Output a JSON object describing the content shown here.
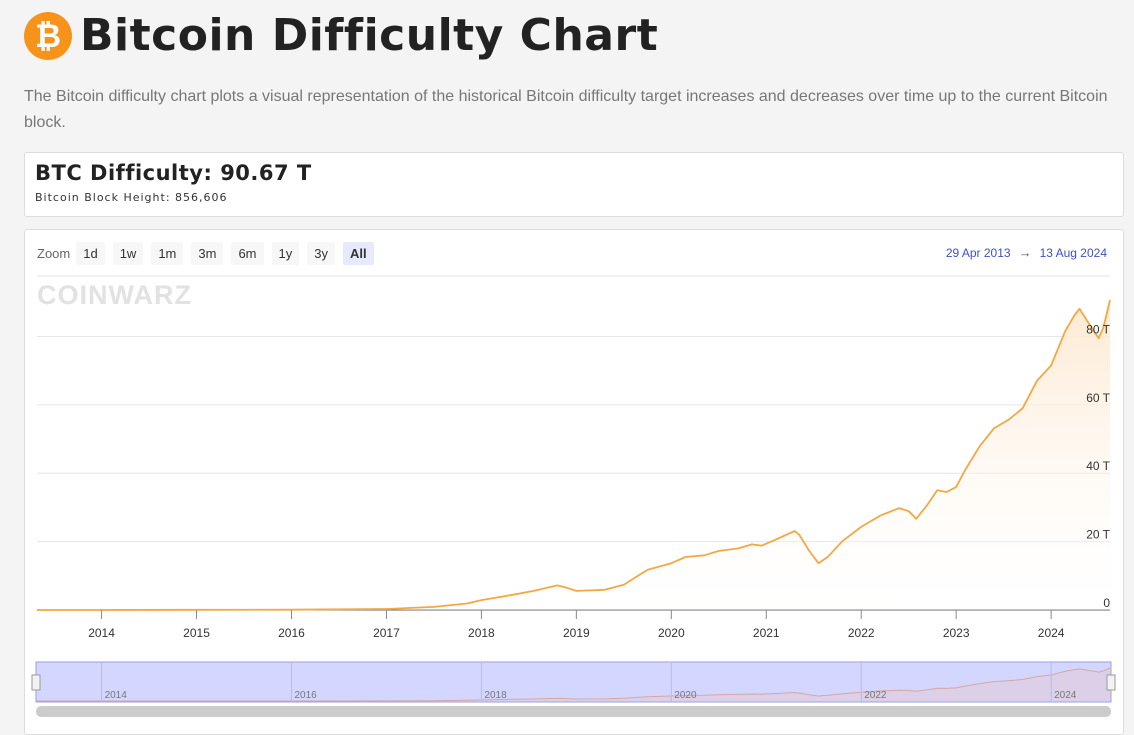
{
  "header": {
    "logo_glyph": "₿",
    "title": "Bitcoin Difficulty Chart"
  },
  "description": "The Bitcoin difficulty chart plots a visual representation of the historical Bitcoin difficulty target increases and decreases over time up to the current Bitcoin block.",
  "stats": {
    "difficulty_label": "BTC Difficulty: 90.67 T",
    "block_height_label": "Bitcoin Block Height: 856,606"
  },
  "toolbar": {
    "zoom_label": "Zoom",
    "zoom_buttons": [
      "1d",
      "1w",
      "1m",
      "3m",
      "6m",
      "1y",
      "3y",
      "All"
    ],
    "active_zoom": "All",
    "range_from": "29 Apr 2013",
    "range_arrow": "→",
    "range_to": "13 Aug 2024"
  },
  "watermark": "COINWARZ",
  "colors": {
    "line": "#f5a742",
    "fill_top": "#fde7cc",
    "navigator_mask": "#d3d6ff",
    "brand_orange": "#f7931a"
  },
  "chart_data": {
    "type": "area",
    "x_unit": "year",
    "y_unit": "T",
    "xlim": [
      2013.32,
      2024.62
    ],
    "ylim": [
      0,
      90.67
    ],
    "ytick_values": [
      0,
      20,
      40,
      60,
      80
    ],
    "ytick_labels": [
      "0",
      "20 T",
      "40 T",
      "60 T",
      "80 T"
    ],
    "xticks": [
      2014,
      2015,
      2016,
      2017,
      2018,
      2019,
      2020,
      2021,
      2022,
      2023,
      2024
    ],
    "xtick_labels": [
      "2014",
      "2015",
      "2016",
      "2017",
      "2018",
      "2019",
      "2020",
      "2021",
      "2022",
      "2023",
      "2024"
    ],
    "navigator_ticks": [
      2014,
      2016,
      2018,
      2020,
      2022,
      2024
    ],
    "navigator_labels": [
      "2014",
      "2016",
      "2018",
      "2020",
      "2022",
      "2024"
    ],
    "series": [
      {
        "x": [
          2013.32,
          2014.0,
          2015.0,
          2016.0,
          2017.0,
          2017.5,
          2017.85,
          2018.0,
          2018.3,
          2018.55,
          2018.8,
          2018.9,
          2019.0,
          2019.3,
          2019.5,
          2019.75,
          2020.0,
          2020.15,
          2020.35,
          2020.5,
          2020.7,
          2020.85,
          2020.95,
          2021.1,
          2021.3,
          2021.35,
          2021.45,
          2021.55,
          2021.65,
          2021.8,
          2022.0,
          2022.2,
          2022.4,
          2022.5,
          2022.58,
          2022.7,
          2022.8,
          2022.9,
          2023.0,
          2023.1,
          2023.25,
          2023.4,
          2023.55,
          2023.7,
          2023.85,
          2024.0,
          2024.15,
          2024.25,
          2024.3,
          2024.4,
          2024.5,
          2024.55,
          2024.62
        ],
        "y": [
          0.01,
          0.002,
          0.05,
          0.1,
          0.3,
          0.9,
          1.9,
          2.9,
          4.3,
          5.6,
          7.2,
          6.5,
          5.6,
          5.9,
          7.4,
          11.8,
          13.7,
          15.5,
          16.0,
          17.3,
          18.0,
          19.2,
          18.8,
          20.6,
          23.1,
          21.9,
          17.4,
          13.7,
          15.6,
          20.1,
          24.3,
          27.6,
          29.8,
          28.9,
          26.7,
          30.9,
          35.0,
          34.5,
          36.0,
          41.2,
          48.0,
          53.2,
          55.6,
          59.0,
          67.0,
          71.5,
          81.7,
          86.4,
          88.1,
          83.7,
          79.5,
          82.6,
          90.67
        ]
      }
    ]
  }
}
